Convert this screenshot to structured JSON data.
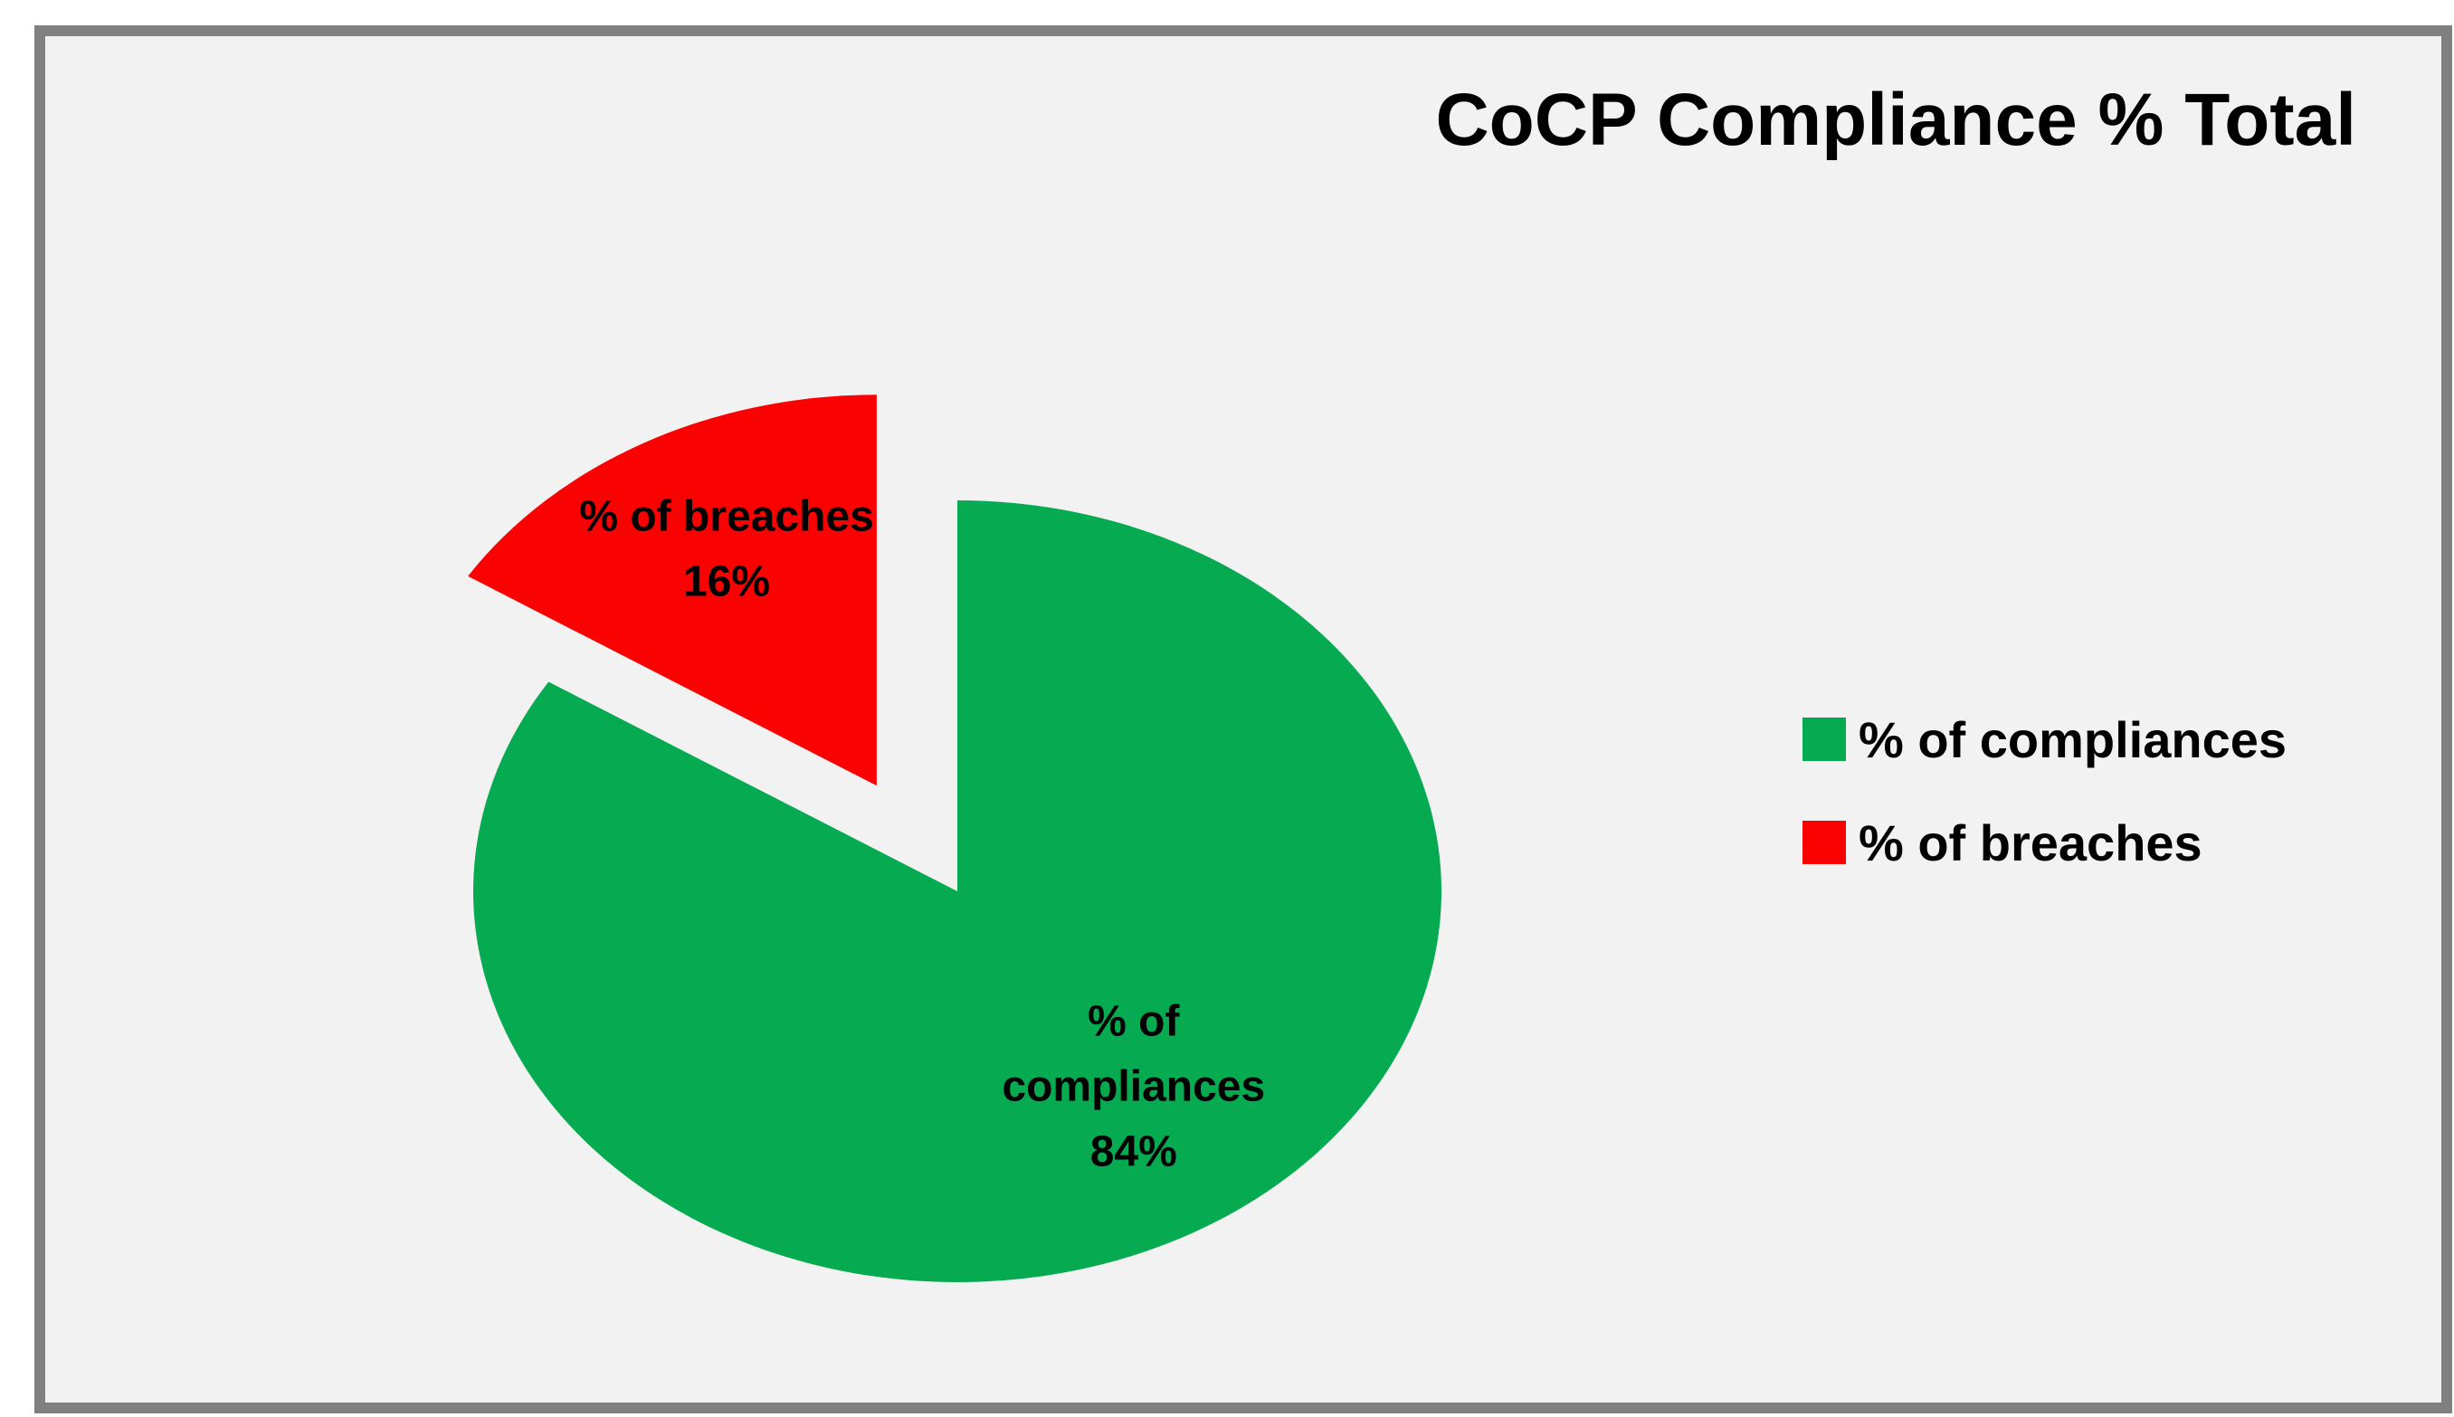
{
  "chart_data": {
    "type": "pie",
    "title": "CoCP Compliance  % Total",
    "slices": [
      {
        "name": "% of compliances",
        "label_lines": [
          "% of",
          "compliances",
          "84%"
        ],
        "value": 84,
        "color": "#06aa50",
        "exploded": false
      },
      {
        "name": "% of breaches",
        "label_lines": [
          "% of breaches",
          "16%"
        ],
        "value": 16,
        "color": "#fb0202",
        "exploded": true
      }
    ],
    "legend": {
      "position": "right",
      "entries": [
        "% of compliances",
        "% of breaches"
      ]
    },
    "colors": {
      "plot_background": "#f2f2f2",
      "border": "#808080",
      "text": "#000000"
    }
  }
}
